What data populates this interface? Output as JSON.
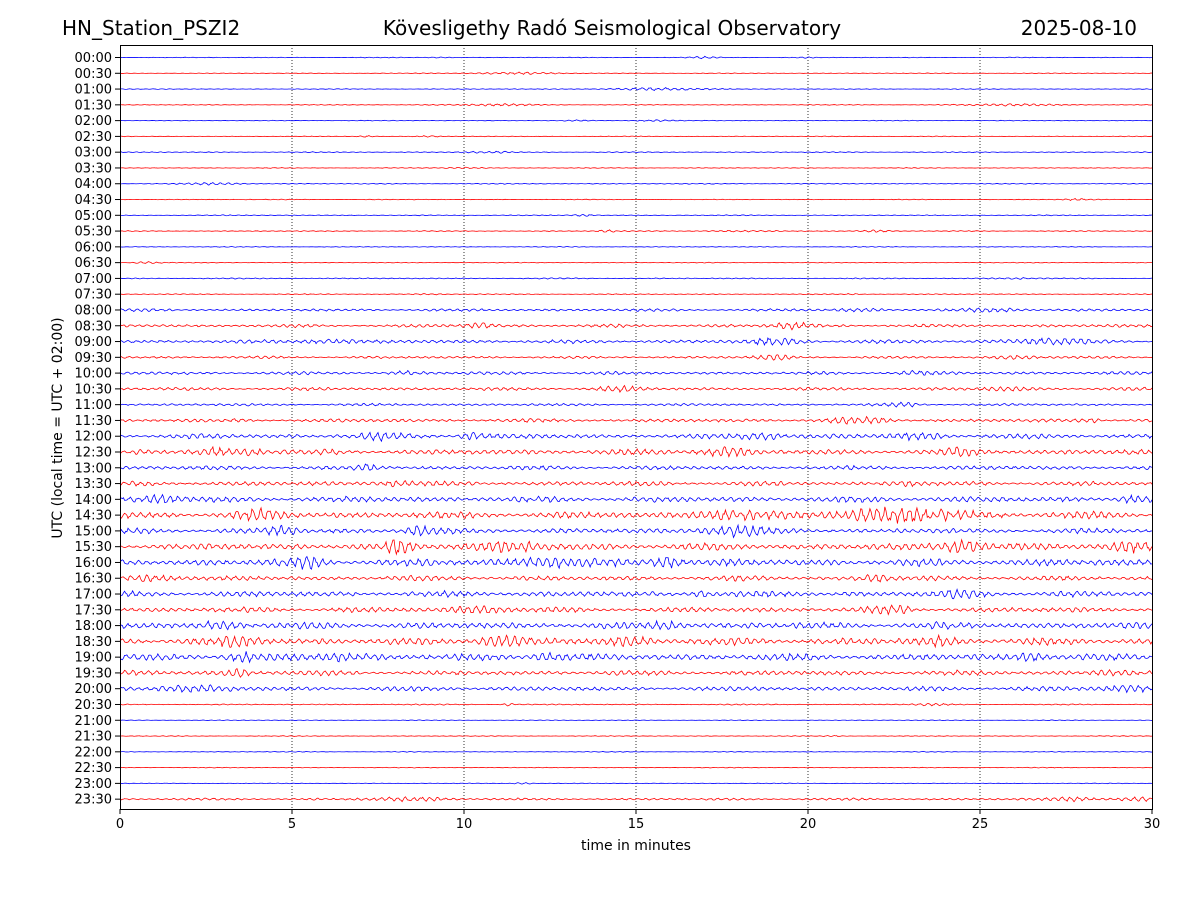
{
  "header": {
    "station": "HN_Station_PSZI2",
    "observatory": "Kövesligethy Radó Seismological Observatory",
    "date": "2025-08-10"
  },
  "chart_data": {
    "type": "line",
    "title": "Kövesligethy Radó Seismological Observatory",
    "xlabel": "time in minutes",
    "ylabel": "UTC (local time = UTC + 02:00)",
    "xlim": [
      0,
      30
    ],
    "xticks": [
      "0",
      "5",
      "10",
      "15",
      "20",
      "25",
      "30"
    ],
    "vertical_gridlines": [
      5,
      10,
      15,
      20,
      25
    ],
    "trace_colors": [
      "#0000ff",
      "#ff0000"
    ],
    "rows": [
      "00:00",
      "00:30",
      "01:00",
      "01:30",
      "02:00",
      "02:30",
      "03:00",
      "03:30",
      "04:00",
      "04:30",
      "05:00",
      "05:30",
      "06:00",
      "06:30",
      "07:00",
      "07:30",
      "08:00",
      "08:30",
      "09:00",
      "09:30",
      "10:00",
      "10:30",
      "11:00",
      "11:30",
      "12:00",
      "12:30",
      "13:00",
      "13:30",
      "14:00",
      "14:30",
      "15:00",
      "15:30",
      "16:00",
      "16:30",
      "17:00",
      "17:30",
      "18:00",
      "18:30",
      "19:00",
      "19:30",
      "20:00",
      "20:30",
      "21:00",
      "21:30",
      "22:00",
      "22:30",
      "23:00",
      "23:30"
    ],
    "background_activity": [
      0.3,
      0.3,
      0.3,
      0.3,
      0.3,
      0.3,
      0.4,
      0.3,
      0.4,
      0.3,
      0.4,
      0.4,
      0.3,
      0.3,
      0.5,
      0.4,
      1.2,
      1.4,
      1.6,
      1.1,
      1.4,
      1.4,
      1.1,
      1.6,
      2.2,
      2.4,
      1.8,
      2.0,
      2.6,
      3.0,
      2.4,
      3.0,
      3.2,
      2.2,
      2.6,
      2.4,
      3.0,
      3.2,
      3.0,
      2.2,
      2.0,
      0.5,
      0.3,
      0.3,
      0.3,
      0.3,
      0.3,
      1.0
    ],
    "events": [
      [
        [
          9.3,
          0.2,
          0.6
        ],
        [
          17.0,
          0.3,
          0.8
        ],
        [
          20.0,
          0.2,
          0.5
        ]
      ],
      [
        [
          11.5,
          0.9,
          0.9
        ]
      ],
      [
        [
          15.8,
          1.1,
          1.2
        ]
      ],
      [
        [
          10.8,
          1.0,
          0.9
        ],
        [
          26.0,
          1.0,
          1.0
        ]
      ],
      [
        [
          13.3,
          0.2,
          0.6
        ],
        [
          15.5,
          0.4,
          0.8
        ]
      ],
      [
        [
          7.2,
          0.2,
          0.7
        ],
        [
          9.0,
          0.2,
          0.7
        ]
      ],
      [
        [
          10.2,
          0.3,
          0.6
        ],
        [
          11.0,
          0.3,
          0.6
        ]
      ],
      [
        [
          10.0,
          0.4,
          0.6
        ]
      ],
      [
        [
          2.7,
          0.6,
          0.9
        ]
      ],
      [
        [
          27.8,
          0.3,
          1.0
        ]
      ],
      [
        [
          13.5,
          0.2,
          1.0
        ]
      ],
      [
        [
          14.2,
          0.2,
          1.2
        ],
        [
          22.0,
          0.3,
          1.0
        ],
        [
          18.0,
          0.8,
          0.5
        ]
      ],
      [],
      [
        [
          0.8,
          0.3,
          1.0
        ]
      ],
      [
        [
          26.0,
          0.4,
          0.6
        ]
      ],
      [
        [
          9.0,
          0.3,
          0.6
        ],
        [
          21.3,
          0.1,
          0.8
        ]
      ],
      [
        [
          21.5,
          0.4,
          1.2
        ],
        [
          25.5,
          0.6,
          1.4
        ]
      ],
      [
        [
          10.5,
          0.3,
          2.2
        ],
        [
          19.5,
          0.4,
          2.6
        ]
      ],
      [
        [
          6.0,
          0.6,
          1.6
        ],
        [
          19.0,
          0.6,
          2.4
        ],
        [
          27.0,
          0.8,
          2.6
        ]
      ],
      [
        [
          19.0,
          0.4,
          2.0
        ],
        [
          26.0,
          0.4,
          1.4
        ]
      ],
      [
        [
          8.3,
          0.3,
          1.2
        ],
        [
          23.0,
          0.4,
          1.2
        ]
      ],
      [
        [
          14.5,
          0.4,
          2.0
        ],
        [
          25.8,
          0.4,
          1.8
        ]
      ],
      [
        [
          22.8,
          0.3,
          1.6
        ]
      ],
      [
        [
          21.5,
          0.6,
          2.2
        ],
        [
          28.2,
          0.2,
          2.0
        ]
      ],
      [
        [
          7.5,
          0.4,
          2.8
        ],
        [
          10.3,
          0.3,
          3.0
        ],
        [
          18.7,
          0.5,
          2.8
        ],
        [
          23.2,
          0.5,
          2.8
        ]
      ],
      [
        [
          2.8,
          0.3,
          3.0
        ],
        [
          3.8,
          0.3,
          2.8
        ],
        [
          17.5,
          0.5,
          3.2
        ],
        [
          24.5,
          0.3,
          2.6
        ]
      ],
      [
        [
          7.2,
          0.2,
          2.6
        ]
      ],
      [
        [
          8.0,
          0.4,
          2.4
        ],
        [
          22.8,
          0.3,
          2.4
        ]
      ],
      [
        [
          1.2,
          0.4,
          3.2
        ],
        [
          29.5,
          0.3,
          3.0
        ]
      ],
      [
        [
          4.0,
          0.5,
          4.0
        ],
        [
          17.5,
          0.6,
          3.6
        ],
        [
          22.5,
          1.5,
          5.2
        ]
      ],
      [
        [
          4.7,
          0.3,
          4.0
        ],
        [
          8.6,
          0.3,
          3.8
        ],
        [
          17.8,
          0.6,
          4.6
        ]
      ],
      [
        [
          8.1,
          0.3,
          5.0
        ],
        [
          11.0,
          0.8,
          4.2
        ],
        [
          24.5,
          0.5,
          5.2
        ],
        [
          29.5,
          0.5,
          3.8
        ]
      ],
      [
        [
          5.5,
          0.3,
          4.0
        ],
        [
          12.5,
          0.8,
          3.8
        ],
        [
          15.9,
          0.3,
          5.0
        ]
      ],
      [
        [
          1.0,
          0.5,
          2.6
        ],
        [
          22.0,
          0.3,
          2.4
        ]
      ],
      [
        [
          16.9,
          0.2,
          3.2
        ],
        [
          24.5,
          0.4,
          3.0
        ]
      ],
      [
        [
          10.5,
          0.5,
          2.6
        ],
        [
          22.5,
          0.4,
          2.6
        ]
      ],
      [
        [
          15.9,
          0.3,
          3.2
        ],
        [
          3.0,
          0.5,
          2.8
        ]
      ],
      [
        [
          3.5,
          0.4,
          3.4
        ],
        [
          11.0,
          0.5,
          3.4
        ],
        [
          14.8,
          0.4,
          3.4
        ],
        [
          24.0,
          0.4,
          3.2
        ]
      ],
      [
        [
          3.5,
          0.3,
          3.6
        ],
        [
          6.5,
          0.5,
          3.2
        ],
        [
          12.4,
          0.3,
          3.2
        ],
        [
          26.5,
          0.3,
          3.4
        ]
      ],
      [
        [
          3.5,
          0.3,
          2.6
        ],
        [
          28.8,
          0.3,
          2.0
        ]
      ],
      [
        [
          2.0,
          0.8,
          2.4
        ],
        [
          29.3,
          0.5,
          2.4
        ]
      ],
      [
        [
          11.3,
          0.1,
          1.2
        ],
        [
          23.5,
          0.4,
          0.8
        ]
      ],
      [],
      [
        [
          20.7,
          0.2,
          0.5
        ]
      ],
      [],
      [],
      [
        [
          11.7,
          0.2,
          0.8
        ]
      ],
      [
        [
          8.5,
          0.8,
          1.6
        ],
        [
          27.8,
          0.5,
          1.8
        ],
        [
          29.5,
          0.4,
          1.6
        ]
      ]
    ]
  }
}
